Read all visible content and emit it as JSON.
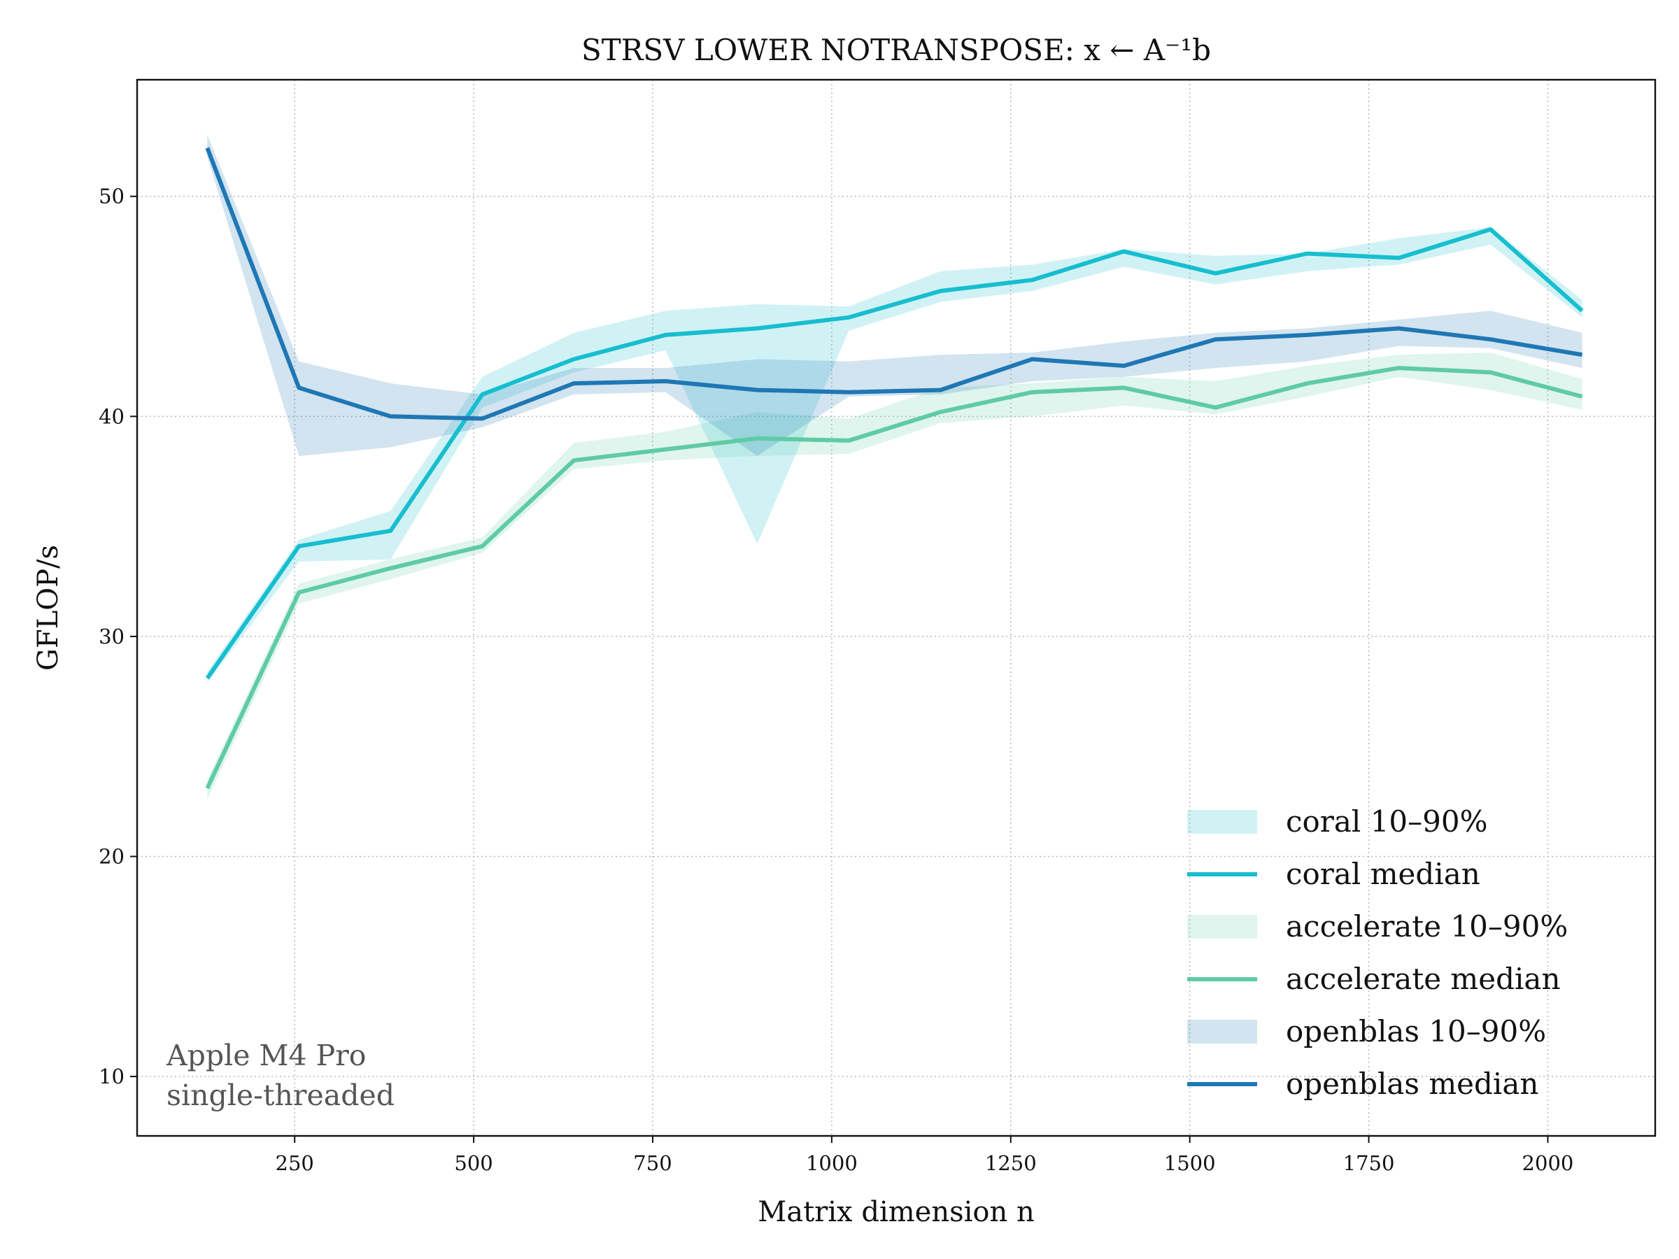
{
  "chart_data": {
    "type": "line",
    "title": "STRSV LOWER NOTRANSPOSE: x ← A⁻¹b",
    "xlabel": "Matrix dimension n",
    "ylabel": "GFLOP/s",
    "xlim": [
      30,
      2150
    ],
    "ylim": [
      7.3,
      55.3
    ],
    "xticks": [
      250,
      500,
      750,
      1000,
      1250,
      1500,
      1750,
      2000
    ],
    "yticks": [
      10,
      20,
      30,
      40,
      50
    ],
    "grid": true,
    "legend_position": "lower-right",
    "annotation": [
      "Apple M4 Pro",
      "single-threaded"
    ],
    "x": [
      128,
      256,
      384,
      512,
      640,
      768,
      896,
      1024,
      1152,
      1280,
      1408,
      1536,
      1664,
      1792,
      1920,
      2048
    ],
    "series": [
      {
        "name": "coral",
        "color": "#17becf",
        "median_label": "coral median",
        "band_label": "coral 10–90%",
        "median": [
          28.1,
          34.1,
          34.8,
          41.0,
          42.6,
          43.7,
          44.0,
          44.5,
          45.7,
          46.2,
          47.5,
          46.5,
          47.4,
          47.2,
          48.5,
          44.8
        ],
        "p10": [
          27.9,
          33.4,
          33.5,
          40.4,
          42.0,
          43.0,
          34.2,
          43.9,
          45.2,
          45.7,
          46.8,
          46.0,
          46.6,
          46.9,
          47.8,
          44.5
        ],
        "p90": [
          28.4,
          34.4,
          35.7,
          41.8,
          43.8,
          44.8,
          45.1,
          45.0,
          46.6,
          46.9,
          47.6,
          47.3,
          47.4,
          48.1,
          48.6,
          45.3
        ]
      },
      {
        "name": "accelerate",
        "color": "#5fcba5",
        "median_label": "accelerate median",
        "band_label": "accelerate 10–90%",
        "median": [
          23.1,
          32.0,
          33.1,
          34.1,
          38.0,
          38.5,
          39.0,
          38.9,
          40.2,
          41.1,
          41.3,
          40.4,
          41.5,
          42.2,
          42.0,
          40.9
        ],
        "p10": [
          22.6,
          31.5,
          32.6,
          33.8,
          37.6,
          38.0,
          38.2,
          38.3,
          39.7,
          40.0,
          40.5,
          40.1,
          40.9,
          41.8,
          41.2,
          40.3
        ],
        "p90": [
          23.5,
          32.4,
          33.5,
          34.5,
          38.8,
          39.3,
          40.2,
          39.9,
          41.3,
          41.5,
          41.8,
          41.6,
          42.3,
          42.8,
          42.9,
          41.7
        ]
      },
      {
        "name": "openblas",
        "color": "#1f77b4",
        "median_label": "openblas median",
        "band_label": "openblas 10–90%",
        "median": [
          52.2,
          41.3,
          40.0,
          39.9,
          41.5,
          41.6,
          41.2,
          41.1,
          41.2,
          42.6,
          42.3,
          43.5,
          43.7,
          44.0,
          43.5,
          42.8
        ],
        "p10": [
          51.8,
          38.2,
          38.6,
          39.5,
          41.0,
          41.1,
          38.2,
          40.9,
          41.0,
          41.6,
          41.8,
          42.2,
          42.5,
          43.2,
          43.1,
          42.2
        ],
        "p90": [
          52.8,
          42.5,
          41.5,
          41.0,
          42.2,
          42.2,
          42.6,
          42.5,
          42.8,
          42.9,
          43.4,
          43.8,
          44.0,
          44.4,
          44.8,
          43.8
        ]
      }
    ]
  }
}
